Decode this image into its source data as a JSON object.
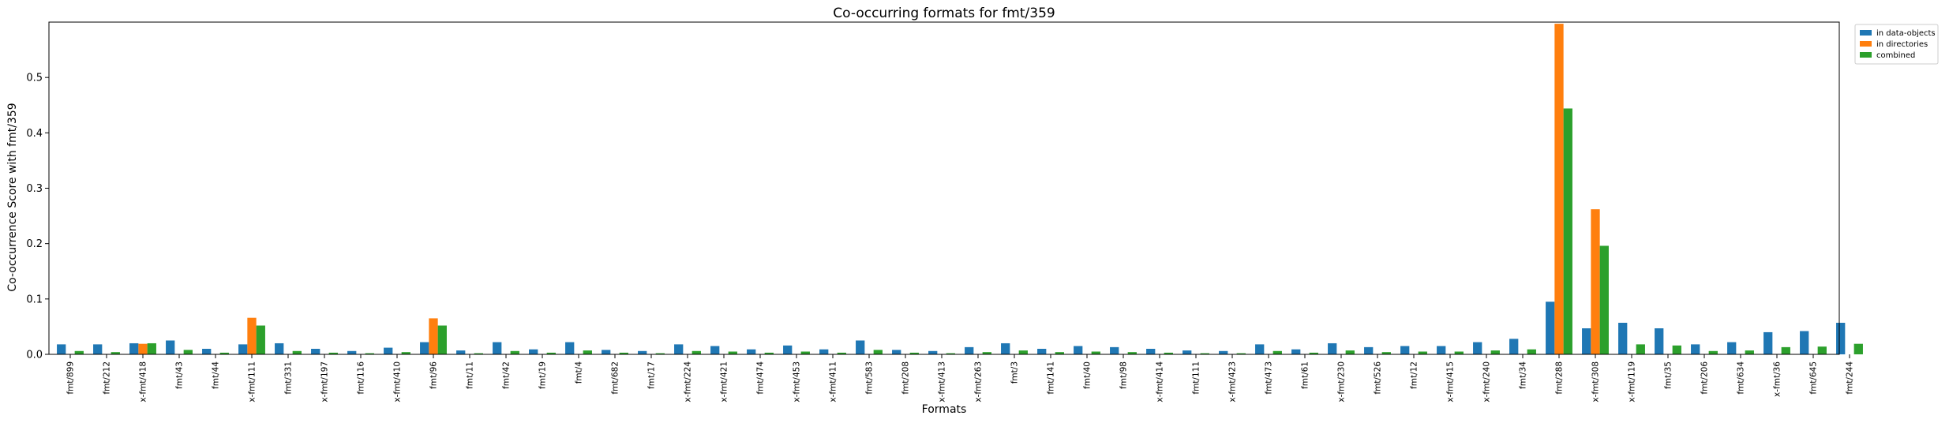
{
  "chart_data": {
    "type": "bar",
    "title": "Co-occurring formats for fmt/359",
    "xlabel": "Formats",
    "ylabel": "Co-occurrence Score with fmt/359",
    "ylim": [
      0,
      0.6
    ],
    "yticks": [
      0.0,
      0.1,
      0.2,
      0.3,
      0.4,
      0.5
    ],
    "ytick_labels": [
      "0.0",
      "0.1",
      "0.2",
      "0.3",
      "0.4",
      "0.5"
    ],
    "grid": false,
    "legend_position": "upper right, outside plot",
    "colors": [
      "#1f77b4",
      "#ff7f0e",
      "#2ca02c"
    ],
    "categories": [
      "fmt/899",
      "fmt/212",
      "x-fmt/418",
      "fmt/43",
      "fmt/44",
      "x-fmt/111",
      "fmt/331",
      "x-fmt/197",
      "fmt/116",
      "x-fmt/410",
      "fmt/96",
      "fmt/11",
      "fmt/42",
      "fmt/19",
      "fmt/4",
      "fmt/682",
      "fmt/17",
      "x-fmt/224",
      "x-fmt/421",
      "fmt/474",
      "x-fmt/453",
      "x-fmt/411",
      "fmt/583",
      "fmt/208",
      "x-fmt/413",
      "x-fmt/263",
      "fmt/3",
      "fmt/141",
      "fmt/40",
      "fmt/98",
      "x-fmt/414",
      "fmt/111",
      "x-fmt/423",
      "fmt/473",
      "fmt/61",
      "x-fmt/230",
      "fmt/526",
      "fmt/12",
      "x-fmt/415",
      "x-fmt/240",
      "fmt/34",
      "fmt/288",
      "x-fmt/308",
      "x-fmt/119",
      "fmt/35",
      "fmt/206",
      "fmt/634",
      "x-fmt/36",
      "fmt/645",
      "fmt/244"
    ],
    "series": [
      {
        "name": "in data-objects",
        "values": [
          0.018,
          0.018,
          0.02,
          0.025,
          0.01,
          0.018,
          0.02,
          0.01,
          0.006,
          0.012,
          0.022,
          0.007,
          0.022,
          0.009,
          0.022,
          0.008,
          0.006,
          0.018,
          0.015,
          0.009,
          0.016,
          0.009,
          0.025,
          0.008,
          0.006,
          0.013,
          0.02,
          0.01,
          0.015,
          0.013,
          0.01,
          0.007,
          0.006,
          0.018,
          0.009,
          0.02,
          0.013,
          0.015,
          0.015,
          0.022,
          0.028,
          0.095,
          0.047,
          0.057,
          0.047,
          0.018,
          0.022,
          0.04,
          0.042,
          0.057
        ]
      },
      {
        "name": "in directories",
        "values": [
          0,
          0,
          0.019,
          0,
          0,
          0.066,
          0,
          0,
          0,
          0,
          0.065,
          0,
          0,
          0,
          0,
          0,
          0,
          0,
          0,
          0,
          0,
          0,
          0,
          0,
          0,
          0,
          0,
          0,
          0,
          0,
          0,
          0,
          0,
          0,
          0,
          0,
          0,
          0,
          0,
          0,
          0,
          0.597,
          0.262,
          0,
          0,
          0,
          0,
          0,
          0,
          0
        ]
      },
      {
        "name": "combined",
        "values": [
          0.006,
          0.004,
          0.02,
          0.008,
          0.003,
          0.052,
          0.006,
          0.003,
          0.002,
          0.004,
          0.052,
          0.002,
          0.006,
          0.003,
          0.007,
          0.003,
          0.002,
          0.006,
          0.005,
          0.003,
          0.005,
          0.003,
          0.008,
          0.003,
          0.002,
          0.004,
          0.007,
          0.004,
          0.005,
          0.004,
          0.003,
          0.002,
          0.002,
          0.006,
          0.003,
          0.007,
          0.004,
          0.005,
          0.005,
          0.007,
          0.009,
          0.444,
          0.196,
          0.018,
          0.016,
          0.006,
          0.007,
          0.013,
          0.014,
          0.019
        ]
      }
    ]
  }
}
